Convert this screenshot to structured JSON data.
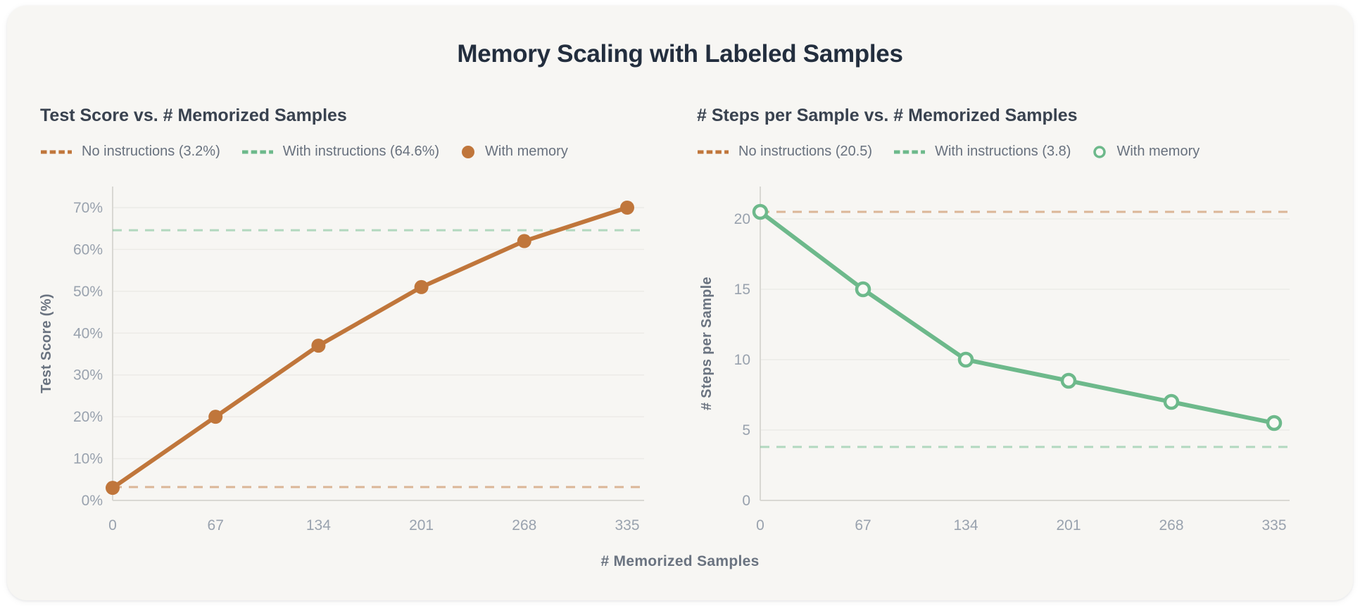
{
  "page": {
    "title": "Memory Scaling with Labeled Samples",
    "shared_xlabel": "# Memorized Samples"
  },
  "colors": {
    "card_bg": "#F7F6F3",
    "orange": "#C0763B",
    "green": "#6DB98B",
    "marker_fill_open": "#FAF9F6",
    "grid": "#ECEBE7",
    "axis": "#D9D8D3",
    "title_dark": "#232E3E",
    "panel_title": "#39424F",
    "legend_text": "#68717E",
    "tick_text": "#99A2AE"
  },
  "chart_data": [
    {
      "type": "line",
      "title": "Test Score vs. # Memorized Samples",
      "ylabel": "Test Score (%)",
      "xlabel": "# Memorized Samples",
      "x": [
        0,
        67,
        134,
        201,
        268,
        335
      ],
      "xticks": [
        0,
        67,
        134,
        201,
        268,
        335
      ],
      "yticks": [
        0,
        10,
        20,
        30,
        40,
        50,
        60,
        70
      ],
      "ytick_format": "percent",
      "xlim": [
        0,
        335
      ],
      "ylim": [
        0,
        75
      ],
      "grid": "horizontal",
      "legend_position": "top",
      "series": [
        {
          "name": "With memory",
          "values": [
            3,
            20,
            37,
            51,
            62,
            70
          ],
          "color": "#C0763B",
          "marker": "filled-circle"
        }
      ],
      "reference_lines": [
        {
          "name": "No instructions",
          "value": 3.2,
          "color": "#C0763B",
          "style": "dashed"
        },
        {
          "name": "With instructions",
          "value": 64.6,
          "color": "#6DB98B",
          "style": "dashed"
        }
      ],
      "legend": [
        {
          "label": "No instructions (3.2%)",
          "swatch": "dash",
          "color": "#C0763B"
        },
        {
          "label": "With instructions (64.6%)",
          "swatch": "dash",
          "color": "#6DB98B"
        },
        {
          "label": "With memory",
          "swatch": "filled-circle",
          "color": "#C0763B"
        }
      ]
    },
    {
      "type": "line",
      "title": "# Steps per Sample vs. # Memorized Samples",
      "ylabel": "# Steps per Sample",
      "xlabel": "# Memorized Samples",
      "x": [
        0,
        67,
        134,
        201,
        268,
        335
      ],
      "xticks": [
        0,
        67,
        134,
        201,
        268,
        335
      ],
      "yticks": [
        0,
        5,
        10,
        15,
        20
      ],
      "ytick_format": "plain",
      "xlim": [
        0,
        335
      ],
      "ylim": [
        0,
        22.3
      ],
      "grid": "horizontal",
      "legend_position": "top",
      "series": [
        {
          "name": "With memory",
          "values": [
            20.5,
            15,
            10,
            8.5,
            7,
            5.5
          ],
          "color": "#6DB98B",
          "marker": "open-circle"
        }
      ],
      "reference_lines": [
        {
          "name": "No instructions",
          "value": 20.5,
          "color": "#C0763B",
          "style": "dashed"
        },
        {
          "name": "With instructions",
          "value": 3.8,
          "color": "#6DB98B",
          "style": "dashed"
        }
      ],
      "legend": [
        {
          "label": "No instructions (20.5)",
          "swatch": "dash",
          "color": "#C0763B"
        },
        {
          "label": "With instructions (3.8)",
          "swatch": "dash",
          "color": "#6DB98B"
        },
        {
          "label": "With memory",
          "swatch": "open-circle",
          "color": "#6DB98B"
        }
      ]
    }
  ]
}
